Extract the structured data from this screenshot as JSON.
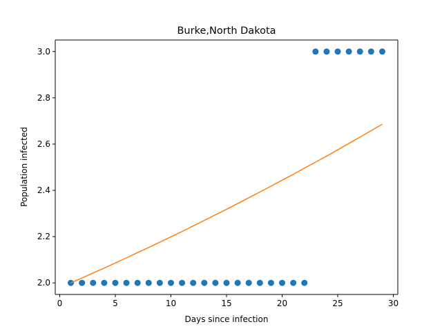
{
  "chart_data": {
    "type": "scatter",
    "title": "Burke,North Dakota",
    "xlabel": "Days since infection",
    "ylabel": "Population infected",
    "xlim": [
      -0.4,
      30.4
    ],
    "ylim": [
      1.95,
      3.05
    ],
    "x_ticks": [
      0,
      5,
      10,
      15,
      20,
      25,
      30
    ],
    "x_tick_labels": [
      "0",
      "5",
      "10",
      "15",
      "20",
      "25",
      "30"
    ],
    "y_ticks": [
      2.0,
      2.2,
      2.4,
      2.6,
      2.8,
      3.0
    ],
    "y_tick_labels": [
      "2.0",
      "2.2",
      "2.4",
      "2.6",
      "2.8",
      "3.0"
    ],
    "grid": false,
    "series": [
      {
        "type": "scatter",
        "color": "#1f77b4",
        "x": [
          1,
          2,
          3,
          4,
          5,
          6,
          7,
          8,
          9,
          10,
          11,
          12,
          13,
          14,
          15,
          16,
          17,
          18,
          19,
          20,
          21,
          22,
          23,
          24,
          25,
          26,
          27,
          28,
          29
        ],
        "y": [
          2,
          2,
          2,
          2,
          2,
          2,
          2,
          2,
          2,
          2,
          2,
          2,
          2,
          2,
          2,
          2,
          2,
          2,
          2,
          2,
          2,
          2,
          3,
          3,
          3,
          3,
          3,
          3,
          3
        ]
      },
      {
        "type": "line",
        "color": "#ff7f0e",
        "x": [
          1,
          2,
          3,
          4,
          5,
          6,
          7,
          8,
          9,
          10,
          11,
          12,
          13,
          14,
          15,
          16,
          17,
          18,
          19,
          20,
          21,
          22,
          23,
          24,
          25,
          26,
          27,
          28,
          29
        ],
        "y": [
          2.0,
          2.021,
          2.043,
          2.064,
          2.086,
          2.108,
          2.131,
          2.153,
          2.176,
          2.199,
          2.222,
          2.246,
          2.27,
          2.294,
          2.318,
          2.343,
          2.368,
          2.393,
          2.418,
          2.444,
          2.469,
          2.496,
          2.522,
          2.548,
          2.575,
          2.603,
          2.63,
          2.658,
          2.686
        ]
      }
    ]
  }
}
